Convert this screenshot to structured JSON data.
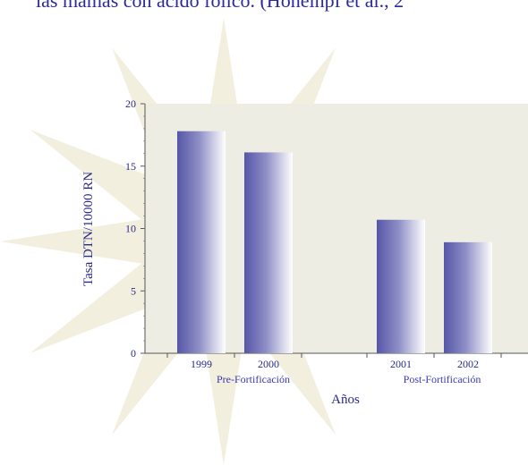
{
  "header": {
    "text": "las mamas con ácido fólico. (Honeinpf et al., 2"
  },
  "colors": {
    "plot_background": "#eeede4",
    "star": "#f2efdf",
    "bar_dark": "#5656a8",
    "bar_light": "#ffffff",
    "text": "#2a2a8a"
  },
  "chart_data": {
    "type": "bar",
    "categories": [
      "1999",
      "2000",
      "2001",
      "2002"
    ],
    "values": [
      17.8,
      16.1,
      10.7,
      8.9
    ],
    "groups": [
      {
        "label": "Pre-Fortificación",
        "categories": [
          "1999",
          "2000"
        ]
      },
      {
        "label": "Post-Fortificación",
        "categories": [
          "2001",
          "2002"
        ]
      }
    ],
    "xlabel": "Años",
    "ylabel": "Tasa DTN/10000 RN",
    "ylim": [
      0,
      20
    ],
    "yticks": [
      "0",
      "5",
      "10",
      "15",
      "20"
    ],
    "grid": false
  }
}
